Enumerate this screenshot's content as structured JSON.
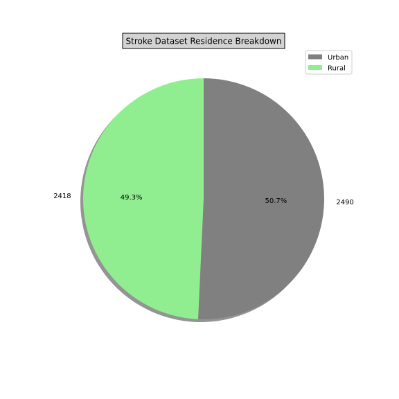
{
  "chart_data": {
    "type": "pie",
    "title": "Stroke Dataset Residence Breakdown",
    "slices": [
      {
        "name": "Urban",
        "value": 2490,
        "label": "2490",
        "pct_label": "50.7%",
        "color": "#808080"
      },
      {
        "name": "Rural",
        "value": 2418,
        "label": "2418",
        "pct_label": "49.3%",
        "color": "#90ee90"
      }
    ],
    "start_angle_deg": 90,
    "direction": "clockwise",
    "shadow": true,
    "legend_placement": "top-right",
    "title_box_color": "#d3d3d3"
  }
}
